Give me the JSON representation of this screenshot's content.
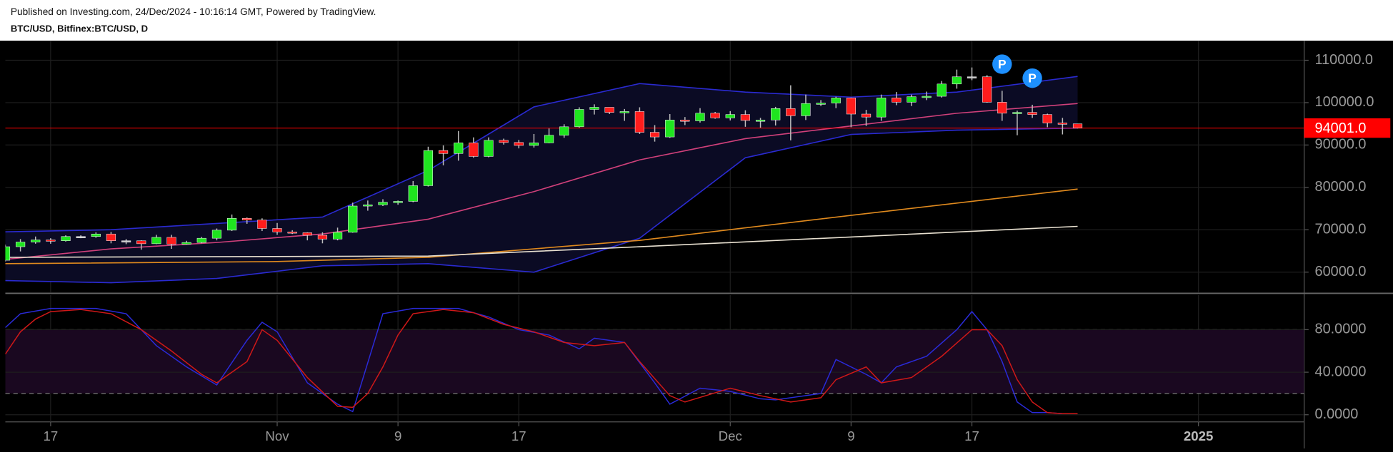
{
  "header": {
    "published": "Published on Investing.com, 24/Dec/2024 - 10:16:14 GMT, Powered by TradingView.",
    "symbol": "BTC/USD, Bitfinex:BTC/USD, D"
  },
  "chart_data": [
    {
      "type": "candlestick",
      "x": [
        "2024-10-14",
        "2024-10-15",
        "2024-10-16",
        "2024-10-17",
        "2024-10-18",
        "2024-10-19",
        "2024-10-20",
        "2024-10-21",
        "2024-10-22",
        "2024-10-23",
        "2024-10-24",
        "2024-10-25",
        "2024-10-26",
        "2024-10-27",
        "2024-10-28",
        "2024-10-29",
        "2024-10-30",
        "2024-10-31",
        "2024-11-01",
        "2024-11-02",
        "2024-11-03",
        "2024-11-04",
        "2024-11-05",
        "2024-11-06",
        "2024-11-07",
        "2024-11-08",
        "2024-11-09",
        "2024-11-10",
        "2024-11-11",
        "2024-11-12",
        "2024-11-13",
        "2024-11-14",
        "2024-11-15",
        "2024-11-16",
        "2024-11-17",
        "2024-11-18",
        "2024-11-19",
        "2024-11-20",
        "2024-11-21",
        "2024-11-22",
        "2024-11-23",
        "2024-11-24",
        "2024-11-25",
        "2024-11-26",
        "2024-11-27",
        "2024-11-28",
        "2024-11-29",
        "2024-11-30",
        "2024-12-01",
        "2024-12-02",
        "2024-12-03",
        "2024-12-04",
        "2024-12-05",
        "2024-12-06",
        "2024-12-07",
        "2024-12-08",
        "2024-12-09",
        "2024-12-10",
        "2024-12-11",
        "2024-12-12",
        "2024-12-13",
        "2024-12-14",
        "2024-12-15",
        "2024-12-16",
        "2024-12-17",
        "2024-12-18",
        "2024-12-19",
        "2024-12-20",
        "2024-12-21",
        "2024-12-22",
        "2024-12-23",
        "2024-12-24"
      ],
      "open": [
        62800,
        66000,
        67100,
        67600,
        67400,
        68400,
        68400,
        69000,
        67400,
        67400,
        66700,
        68200,
        66600,
        67000,
        68000,
        69900,
        72700,
        72300,
        70300,
        69500,
        69300,
        68700,
        67800,
        69400,
        75600,
        75900,
        76500,
        76700,
        80400,
        88700,
        88000,
        90500,
        87300,
        91100,
        90600,
        89900,
        90500,
        92300,
        94300,
        98400,
        98900,
        97700,
        97900,
        93000,
        91900,
        95900,
        95700,
        97500,
        96400,
        97200,
        95800,
        95900,
        98600,
        96900,
        99800,
        99900,
        101100,
        97300,
        96600,
        101100,
        100100,
        101400,
        101500,
        104400,
        106100,
        106100,
        100100,
        97500,
        97700,
        97200,
        95200,
        95000
      ],
      "high": [
        66500,
        67800,
        68400,
        68000,
        68700,
        68700,
        69400,
        69500,
        67800,
        67500,
        68800,
        68800,
        67400,
        68300,
        70300,
        73600,
        72900,
        72700,
        71600,
        69900,
        69400,
        69400,
        70500,
        76400,
        76900,
        77200,
        76900,
        81500,
        89600,
        89900,
        93300,
        91800,
        91800,
        91500,
        91200,
        92600,
        93900,
        94900,
        98900,
        99600,
        98900,
        98500,
        98900,
        94700,
        97300,
        96600,
        98700,
        97800,
        98000,
        98200,
        96400,
        99000,
        104100,
        101900,
        100600,
        101400,
        101200,
        98300,
        101900,
        102500,
        101900,
        102600,
        105100,
        107800,
        108300,
        106500,
        102800,
        98100,
        99500,
        97400,
        96400,
        95000
      ],
      "low": [
        62500,
        64900,
        66700,
        66700,
        67200,
        68000,
        68100,
        66800,
        66600,
        65300,
        66600,
        65500,
        66500,
        66800,
        67500,
        69700,
        71400,
        69700,
        68800,
        69000,
        67500,
        66800,
        67500,
        69300,
        74500,
        75600,
        75900,
        76500,
        80200,
        85200,
        86300,
        87000,
        87100,
        90100,
        89200,
        89400,
        90400,
        91700,
        94100,
        97200,
        97300,
        95700,
        92600,
        90800,
        91700,
        94700,
        95300,
        96200,
        95800,
        94300,
        94100,
        94600,
        91100,
        95900,
        99200,
        98700,
        94200,
        94500,
        95700,
        99400,
        99200,
        100600,
        101200,
        103300,
        105300,
        100000,
        95700,
        92300,
        96400,
        94200,
        92500,
        93900
      ],
      "close": [
        66000,
        67100,
        67600,
        67400,
        68400,
        68400,
        69000,
        67400,
        67400,
        66700,
        68200,
        66600,
        67000,
        68000,
        69900,
        72700,
        72300,
        70300,
        69500,
        69300,
        68700,
        67800,
        69400,
        75600,
        75900,
        76500,
        76700,
        80400,
        88700,
        88000,
        90500,
        87300,
        91100,
        90600,
        89900,
        90500,
        92300,
        94300,
        98400,
        98900,
        97700,
        97900,
        93000,
        91900,
        95900,
        95700,
        97500,
        96400,
        97200,
        95800,
        95900,
        98600,
        96900,
        99800,
        99900,
        101100,
        97300,
        96600,
        101100,
        100100,
        101400,
        101500,
        104400,
        106100,
        106100,
        100100,
        97500,
        97700,
        97200,
        95200,
        95000,
        94001
      ],
      "colors": {
        "up": "#1fe51f",
        "down": "#ff1c1c",
        "flat": "#c8c8c8",
        "wick": "#bdbdbd"
      },
      "bollinger": {
        "x": [
          "2024-10-14",
          "2024-10-21",
          "2024-10-28",
          "2024-11-04",
          "2024-11-11",
          "2024-11-18",
          "2024-11-25",
          "2024-12-02",
          "2024-12-09",
          "2024-12-16",
          "2024-12-24"
        ],
        "upper": [
          69500,
          70000,
          71500,
          73000,
          84000,
          99000,
          104500,
          102500,
          101300,
          102500,
          106200
        ],
        "middle": [
          63000,
          65500,
          67000,
          69000,
          72500,
          79000,
          86500,
          91500,
          94500,
          97500,
          99800
        ],
        "lower": [
          58000,
          57500,
          58500,
          61500,
          62000,
          60000,
          68000,
          87000,
          92500,
          93500,
          94000
        ],
        "color": "#2a2ad0",
        "mid_color": "#d0407a",
        "fill": "#0b0b24"
      },
      "moving_averages": [
        {
          "color": "#e08a1e",
          "x": [
            "2024-10-14",
            "2024-11-01",
            "2024-11-11",
            "2024-11-25",
            "2024-12-09",
            "2024-12-24"
          ],
          "values": [
            62000,
            62500,
            63500,
            67500,
            73400,
            79600
          ]
        },
        {
          "color": "#e8e0d0",
          "x": [
            "2024-10-14",
            "2024-11-11",
            "2024-11-25",
            "2024-12-09",
            "2024-12-24"
          ],
          "values": [
            63500,
            63800,
            66000,
            68300,
            70800
          ]
        }
      ],
      "last_price": {
        "value": 94001,
        "label": "94001.0",
        "color": "#ff0000"
      },
      "markers": [
        {
          "x": "2024-12-19",
          "label": "P"
        },
        {
          "x": "2024-12-21",
          "label": "P"
        }
      ],
      "xlim": [
        "2024-10-14",
        "2025-01-08"
      ],
      "ylim": [
        55200,
        114600
      ],
      "yticks": [
        {
          "value": 60000,
          "label": "60000.0"
        },
        {
          "value": 70000,
          "label": "70000.0"
        },
        {
          "value": 80000,
          "label": "80000.0"
        },
        {
          "value": 90000,
          "label": "90000.0"
        },
        {
          "value": 100000,
          "label": "100000.0"
        },
        {
          "value": 110000,
          "label": "110000.0"
        }
      ],
      "grid": true
    },
    {
      "type": "line",
      "series": [
        {
          "color": "#2a2ad8",
          "x": [
            "2024-10-14",
            "2024-10-15",
            "2024-10-17",
            "2024-10-20",
            "2024-10-22",
            "2024-10-24",
            "2024-10-26",
            "2024-10-28",
            "2024-10-30",
            "2024-10-31",
            "2024-11-01",
            "2024-11-03",
            "2024-11-05",
            "2024-11-06",
            "2024-11-08",
            "2024-11-10",
            "2024-11-13",
            "2024-11-15",
            "2024-11-17",
            "2024-11-19",
            "2024-11-21",
            "2024-11-22",
            "2024-11-24",
            "2024-11-26",
            "2024-11-27",
            "2024-11-29",
            "2024-12-01",
            "2024-12-03",
            "2024-12-04",
            "2024-12-07",
            "2024-12-08",
            "2024-12-10",
            "2024-12-11",
            "2024-12-12",
            "2024-12-14",
            "2024-12-16",
            "2024-12-17",
            "2024-12-18",
            "2024-12-19",
            "2024-12-20",
            "2024-12-21",
            "2024-12-22",
            "2024-12-23",
            "2024-12-24"
          ],
          "values": [
            82,
            95,
            100,
            100,
            95,
            65,
            45,
            28,
            70,
            87,
            78,
            30,
            10,
            3,
            95,
            100,
            100,
            92,
            80,
            75,
            62,
            72,
            68,
            30,
            10,
            25,
            22,
            15,
            14,
            20,
            52,
            38,
            30,
            45,
            55,
            80,
            97,
            80,
            50,
            12,
            2,
            2,
            1,
            1
          ]
        },
        {
          "color": "#d01818",
          "x": [
            "2024-10-14",
            "2024-10-15",
            "2024-10-16",
            "2024-10-17",
            "2024-10-19",
            "2024-10-21",
            "2024-10-23",
            "2024-10-25",
            "2024-10-27",
            "2024-10-28",
            "2024-10-30",
            "2024-10-31",
            "2024-11-01",
            "2024-11-03",
            "2024-11-05",
            "2024-11-06",
            "2024-11-07",
            "2024-11-08",
            "2024-11-09",
            "2024-11-10",
            "2024-11-12",
            "2024-11-14",
            "2024-11-16",
            "2024-11-18",
            "2024-11-20",
            "2024-11-22",
            "2024-11-24",
            "2024-11-25",
            "2024-11-27",
            "2024-11-28",
            "2024-12-01",
            "2024-12-03",
            "2024-12-05",
            "2024-12-07",
            "2024-12-08",
            "2024-12-10",
            "2024-12-11",
            "2024-12-13",
            "2024-12-15",
            "2024-12-17",
            "2024-12-18",
            "2024-12-19",
            "2024-12-20",
            "2024-12-21",
            "2024-12-22",
            "2024-12-23",
            "2024-12-24"
          ],
          "values": [
            57,
            78,
            90,
            97,
            99,
            95,
            80,
            60,
            38,
            30,
            50,
            80,
            70,
            35,
            8,
            7,
            20,
            45,
            75,
            95,
            99,
            96,
            85,
            78,
            68,
            65,
            68,
            50,
            18,
            12,
            25,
            18,
            12,
            16,
            33,
            45,
            30,
            35,
            55,
            80,
            80,
            65,
            33,
            12,
            2,
            1,
            1
          ]
        }
      ],
      "bands": [
        20,
        80
      ],
      "band_fill": "#1a0820",
      "xlim": [
        "2024-10-14",
        "2025-01-08"
      ],
      "ylim": [
        -6.7,
        112.5
      ],
      "yticks": [
        {
          "value": 0,
          "label": "0.0000"
        },
        {
          "value": 40,
          "label": "40.0000"
        },
        {
          "value": 80,
          "label": "80.0000"
        }
      ],
      "xticks": [
        {
          "value": "2024-10-17",
          "label": "17"
        },
        {
          "value": "2024-11-01",
          "label": "Nov"
        },
        {
          "value": "2024-11-09",
          "label": "9"
        },
        {
          "value": "2024-11-17",
          "label": "17"
        },
        {
          "value": "2024-12-01",
          "label": "Dec"
        },
        {
          "value": "2024-12-09",
          "label": "9"
        },
        {
          "value": "2024-12-17",
          "label": "17"
        },
        {
          "value": "2025-01-01",
          "label": "2025"
        }
      ],
      "grid": true
    }
  ]
}
